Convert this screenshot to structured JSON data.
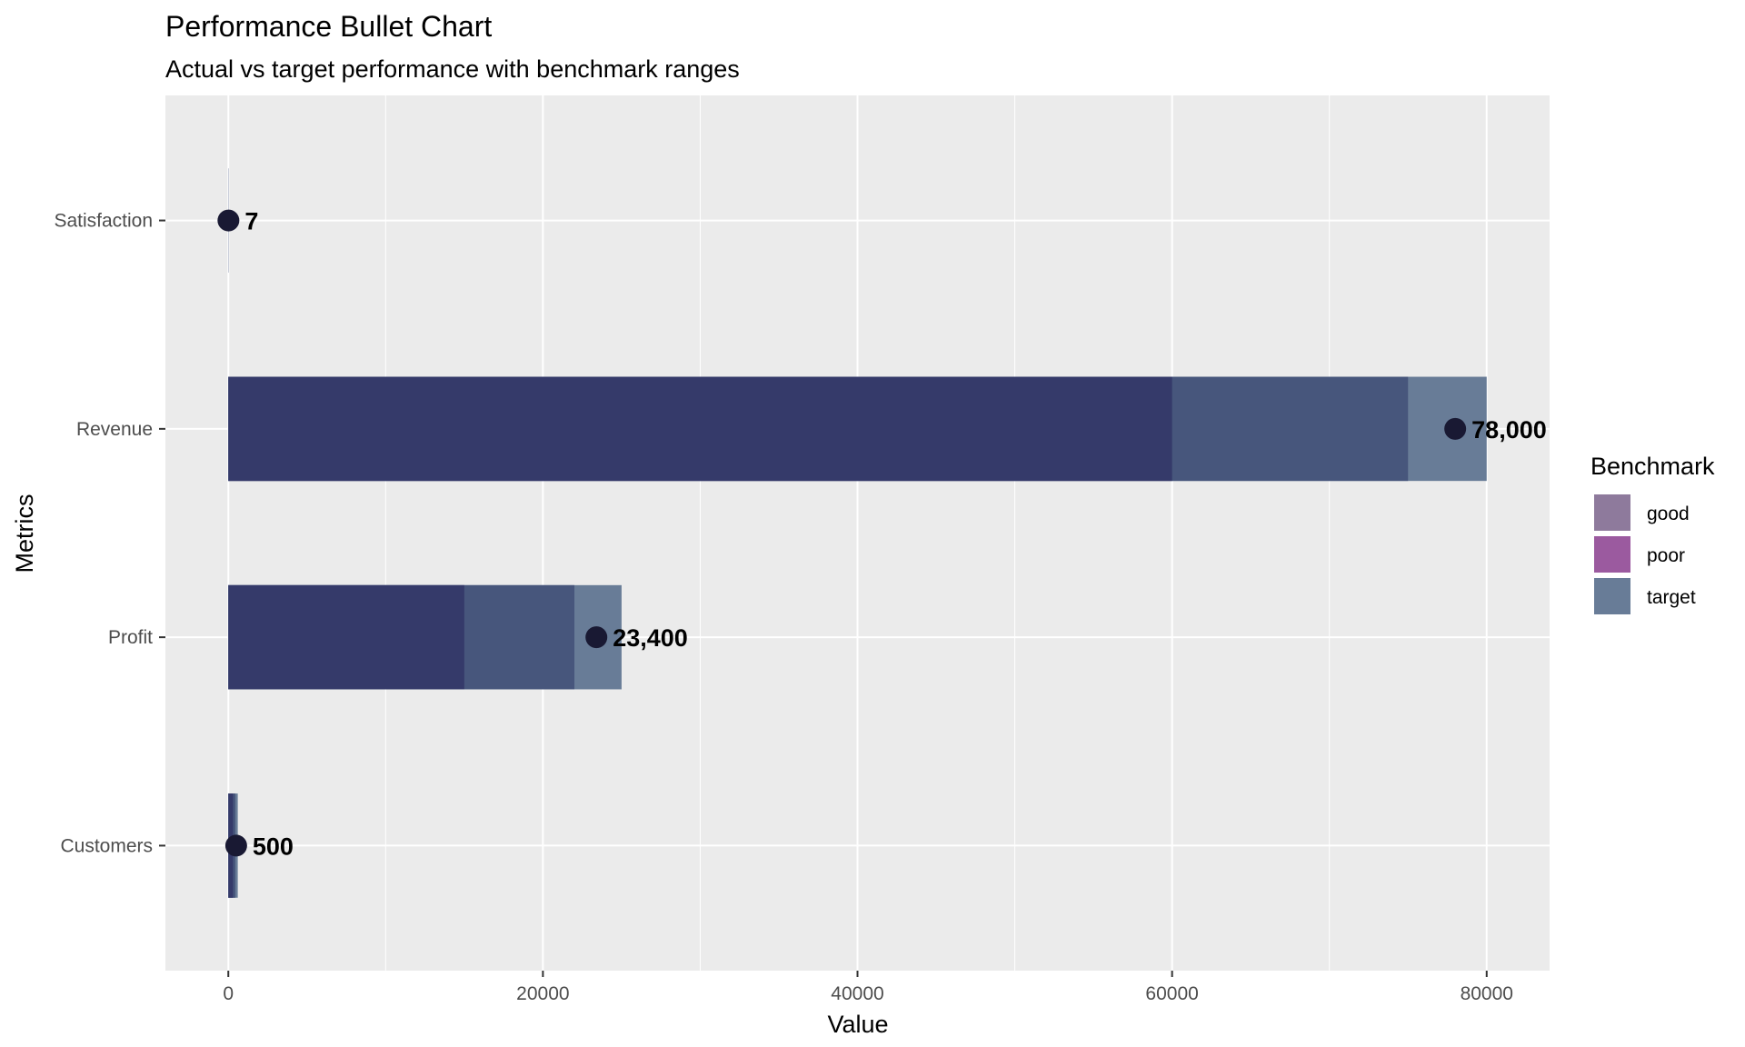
{
  "chart_data": {
    "type": "bar",
    "title": "Performance Bullet Chart",
    "subtitle": "Actual vs target performance with benchmark ranges",
    "xlabel": "Value",
    "ylabel": "Metrics",
    "xlim": [
      -4000,
      84000
    ],
    "x_ticks": [
      0,
      20000,
      40000,
      60000,
      80000
    ],
    "x_tick_labels": [
      "0",
      "20000",
      "40000",
      "60000",
      "80000"
    ],
    "categories": [
      "Satisfaction",
      "Revenue",
      "Profit",
      "Customers"
    ],
    "series": [
      {
        "name": "poor",
        "values": [
          5,
          60000,
          15000,
          300
        ]
      },
      {
        "name": "good",
        "values": [
          7,
          75000,
          22000,
          450
        ]
      },
      {
        "name": "target",
        "values": [
          10,
          80000,
          25000,
          600
        ]
      }
    ],
    "actual": {
      "values": [
        7,
        78000,
        23400,
        500
      ],
      "labels": [
        "7",
        "78,000",
        "23,400",
        "500"
      ]
    },
    "legend": {
      "title": "Benchmark",
      "position": "right",
      "items": [
        {
          "label": "good",
          "color": "#8e7a9c"
        },
        {
          "label": "poor",
          "color": "#9b5a9f"
        },
        {
          "label": "target",
          "color": "#687c97"
        }
      ]
    },
    "grid": true,
    "colors": {
      "panel": "#ebebeb",
      "grid": "#ffffff",
      "poor_bar": "#353a6a",
      "good_bar": "#47567c",
      "target_bar": "#687c97",
      "point": "#191933"
    }
  }
}
